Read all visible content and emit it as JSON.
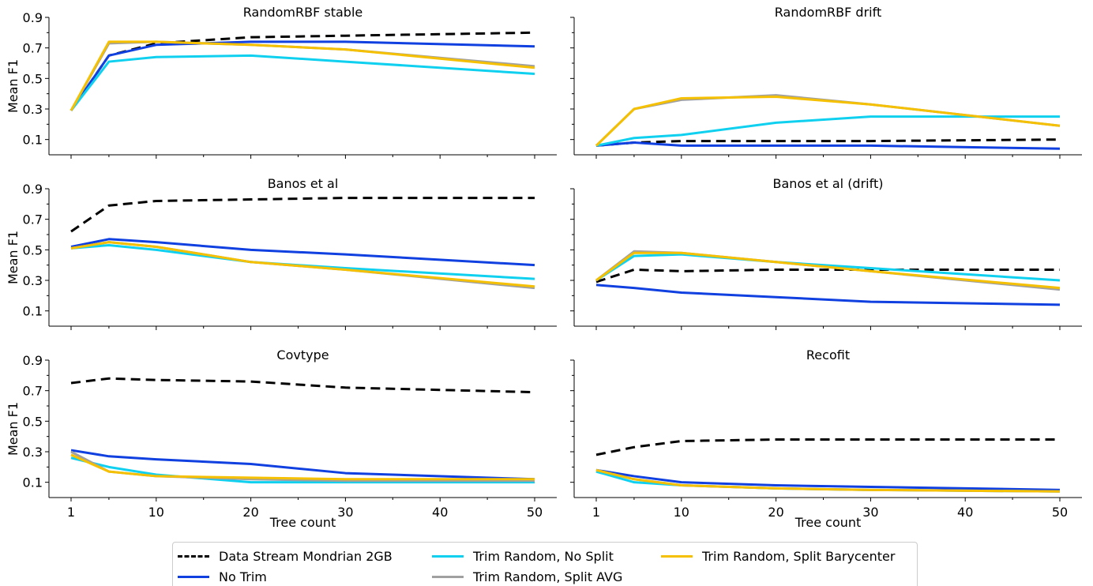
{
  "chart_data": [
    {
      "type": "line",
      "title": "RandomRBF stable",
      "ylabel": "Mean F1",
      "xlabel": "",
      "x": [
        1,
        5,
        10,
        20,
        30,
        50
      ],
      "ylim": [
        0.0,
        0.9
      ],
      "yticks": [
        "0.1",
        "0.3",
        "0.5",
        "0.7",
        "0.9"
      ],
      "xticks": [
        "1",
        "10",
        "20",
        "30",
        "40",
        "50"
      ],
      "series": [
        {
          "name": "Data Stream Mondrian 2GB",
          "values": [
            0.29,
            0.65,
            0.73,
            0.77,
            0.78,
            0.8
          ]
        },
        {
          "name": "No Trim",
          "values": [
            0.29,
            0.65,
            0.72,
            0.74,
            0.74,
            0.71
          ]
        },
        {
          "name": "Trim Random, No Split",
          "values": [
            0.29,
            0.61,
            0.64,
            0.65,
            0.61,
            0.53
          ]
        },
        {
          "name": "Trim Random, Split AVG",
          "values": [
            0.29,
            0.73,
            0.74,
            0.72,
            0.69,
            0.58
          ]
        },
        {
          "name": "Trim Random, Split Barycenter",
          "values": [
            0.29,
            0.74,
            0.74,
            0.72,
            0.69,
            0.57
          ]
        }
      ]
    },
    {
      "type": "line",
      "title": "RandomRBF drift",
      "ylabel": "",
      "xlabel": "",
      "x": [
        1,
        5,
        10,
        20,
        30,
        50
      ],
      "ylim": [
        0.0,
        0.9
      ],
      "yticks": [],
      "xticks": [
        "1",
        "10",
        "20",
        "30",
        "40",
        "50"
      ],
      "series": [
        {
          "name": "Data Stream Mondrian 2GB",
          "values": [
            0.06,
            0.08,
            0.09,
            0.09,
            0.09,
            0.1
          ]
        },
        {
          "name": "No Trim",
          "values": [
            0.06,
            0.08,
            0.06,
            0.06,
            0.06,
            0.04
          ]
        },
        {
          "name": "Trim Random, No Split",
          "values": [
            0.06,
            0.11,
            0.13,
            0.21,
            0.25,
            0.25
          ]
        },
        {
          "name": "Trim Random, Split AVG",
          "values": [
            0.06,
            0.3,
            0.36,
            0.39,
            0.33,
            0.19
          ]
        },
        {
          "name": "Trim Random, Split Barycenter",
          "values": [
            0.06,
            0.3,
            0.37,
            0.38,
            0.33,
            0.19
          ]
        }
      ]
    },
    {
      "type": "line",
      "title": "Banos et al",
      "ylabel": "Mean F1",
      "xlabel": "",
      "x": [
        1,
        5,
        10,
        20,
        30,
        50
      ],
      "ylim": [
        0.0,
        0.9
      ],
      "yticks": [
        "0.1",
        "0.3",
        "0.5",
        "0.7",
        "0.9"
      ],
      "xticks": [
        "1",
        "10",
        "20",
        "30",
        "40",
        "50"
      ],
      "series": [
        {
          "name": "Data Stream Mondrian 2GB",
          "values": [
            0.62,
            0.79,
            0.82,
            0.83,
            0.84,
            0.84
          ]
        },
        {
          "name": "No Trim",
          "values": [
            0.52,
            0.57,
            0.55,
            0.5,
            0.47,
            0.4
          ]
        },
        {
          "name": "Trim Random, No Split",
          "values": [
            0.51,
            0.53,
            0.5,
            0.42,
            0.38,
            0.31
          ]
        },
        {
          "name": "Trim Random, Split AVG",
          "values": [
            0.51,
            0.55,
            0.52,
            0.42,
            0.37,
            0.25
          ]
        },
        {
          "name": "Trim Random, Split Barycenter",
          "values": [
            0.51,
            0.55,
            0.52,
            0.42,
            0.37,
            0.26
          ]
        }
      ]
    },
    {
      "type": "line",
      "title": "Banos et al (drift)",
      "ylabel": "",
      "xlabel": "",
      "x": [
        1,
        5,
        10,
        20,
        30,
        50
      ],
      "ylim": [
        0.0,
        0.9
      ],
      "yticks": [],
      "xticks": [
        "1",
        "10",
        "20",
        "30",
        "40",
        "50"
      ],
      "series": [
        {
          "name": "Data Stream Mondrian 2GB",
          "values": [
            0.29,
            0.37,
            0.36,
            0.37,
            0.37,
            0.37
          ]
        },
        {
          "name": "No Trim",
          "values": [
            0.27,
            0.25,
            0.22,
            0.19,
            0.16,
            0.14
          ]
        },
        {
          "name": "Trim Random, No Split",
          "values": [
            0.3,
            0.46,
            0.47,
            0.42,
            0.38,
            0.3
          ]
        },
        {
          "name": "Trim Random, Split AVG",
          "values": [
            0.3,
            0.49,
            0.48,
            0.42,
            0.36,
            0.24
          ]
        },
        {
          "name": "Trim Random, Split Barycenter",
          "values": [
            0.3,
            0.48,
            0.48,
            0.42,
            0.36,
            0.25
          ]
        }
      ]
    },
    {
      "type": "line",
      "title": "Covtype",
      "ylabel": "Mean F1",
      "xlabel": "Tree count",
      "x": [
        1,
        5,
        10,
        20,
        30,
        50
      ],
      "ylim": [
        0.0,
        0.9
      ],
      "yticks": [
        "0.1",
        "0.3",
        "0.5",
        "0.7",
        "0.9"
      ],
      "xticks": [
        "1",
        "10",
        "20",
        "30",
        "40",
        "50"
      ],
      "series": [
        {
          "name": "Data Stream Mondrian 2GB",
          "values": [
            0.75,
            0.78,
            0.77,
            0.76,
            0.72,
            0.69
          ]
        },
        {
          "name": "No Trim",
          "values": [
            0.31,
            0.27,
            0.25,
            0.22,
            0.16,
            0.12
          ]
        },
        {
          "name": "Trim Random, No Split",
          "values": [
            0.26,
            0.2,
            0.15,
            0.1,
            0.1,
            0.1
          ]
        },
        {
          "name": "Trim Random, Split AVG",
          "values": [
            0.3,
            0.17,
            0.14,
            0.12,
            0.11,
            0.11
          ]
        },
        {
          "name": "Trim Random, Split Barycenter",
          "values": [
            0.28,
            0.17,
            0.14,
            0.13,
            0.12,
            0.12
          ]
        }
      ]
    },
    {
      "type": "line",
      "title": "Recofit",
      "ylabel": "",
      "xlabel": "Tree count",
      "x": [
        1,
        5,
        10,
        20,
        30,
        50
      ],
      "ylim": [
        0.0,
        0.9
      ],
      "yticks": [],
      "xticks": [
        "1",
        "10",
        "20",
        "30",
        "40",
        "50"
      ],
      "series": [
        {
          "name": "Data Stream Mondrian 2GB",
          "values": [
            0.28,
            0.33,
            0.37,
            0.38,
            0.38,
            0.38
          ]
        },
        {
          "name": "No Trim",
          "values": [
            0.18,
            0.14,
            0.1,
            0.08,
            0.07,
            0.05
          ]
        },
        {
          "name": "Trim Random, No Split",
          "values": [
            0.17,
            0.1,
            0.08,
            0.06,
            0.05,
            0.04
          ]
        },
        {
          "name": "Trim Random, Split AVG",
          "values": [
            0.18,
            0.12,
            0.08,
            0.06,
            0.05,
            0.04
          ]
        },
        {
          "name": "Trim Random, Split Barycenter",
          "values": [
            0.18,
            0.12,
            0.08,
            0.06,
            0.05,
            0.04
          ]
        }
      ]
    }
  ],
  "legend": {
    "entries": [
      {
        "label": "Data Stream Mondrian 2GB",
        "color": "#000000",
        "dashed": true
      },
      {
        "label": "No Trim",
        "color": "#1040e0",
        "dashed": false
      },
      {
        "label": "Trim Random, No Split",
        "color": "#10d0f0",
        "dashed": false
      },
      {
        "label": "Trim Random, Split AVG",
        "color": "#a0a0a0",
        "dashed": false
      },
      {
        "label": "Trim Random, Split Barycenter",
        "color": "#f5c000",
        "dashed": false
      }
    ]
  },
  "series_colors": {
    "Data Stream Mondrian 2GB": "#000000",
    "No Trim": "#1040e0",
    "Trim Random, No Split": "#10d0f0",
    "Trim Random, Split AVG": "#a0a0a0",
    "Trim Random, Split Barycenter": "#f5c000"
  }
}
